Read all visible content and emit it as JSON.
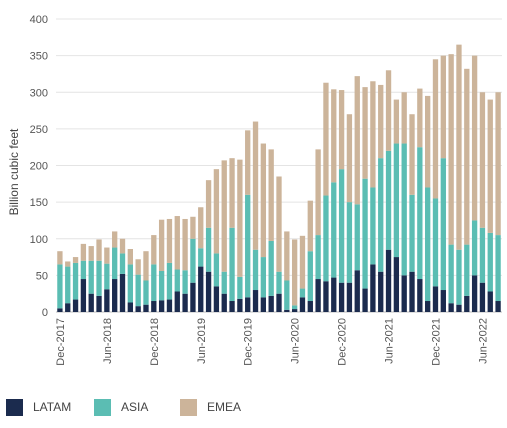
{
  "chart_data": {
    "type": "bar",
    "stacked": true,
    "ylabel": "Billion cubic feet",
    "ylim": [
      0,
      400
    ],
    "yticks": [
      0,
      50,
      100,
      150,
      200,
      250,
      300,
      350,
      400
    ],
    "grid": "horizontal",
    "legend_position": "bottom",
    "x_tick_labels": [
      {
        "index": 0,
        "label": "Dec-2017"
      },
      {
        "index": 6,
        "label": "Jun-2018"
      },
      {
        "index": 12,
        "label": "Dec-2018"
      },
      {
        "index": 18,
        "label": "Jun-2019"
      },
      {
        "index": 24,
        "label": "Dec-2019"
      },
      {
        "index": 30,
        "label": "Jun-2020"
      },
      {
        "index": 36,
        "label": "Dec-2020"
      },
      {
        "index": 42,
        "label": "Jun-2021"
      },
      {
        "index": 48,
        "label": "Dec-2021"
      },
      {
        "index": 54,
        "label": "Jun-2022"
      }
    ],
    "categories": [
      "Dec-2017",
      "Jan-2018",
      "Feb-2018",
      "Mar-2018",
      "Apr-2018",
      "May-2018",
      "Jun-2018",
      "Jul-2018",
      "Aug-2018",
      "Sep-2018",
      "Oct-2018",
      "Nov-2018",
      "Dec-2018",
      "Jan-2019",
      "Feb-2019",
      "Mar-2019",
      "Apr-2019",
      "May-2019",
      "Jun-2019",
      "Jul-2019",
      "Aug-2019",
      "Sep-2019",
      "Oct-2019",
      "Nov-2019",
      "Dec-2019",
      "Jan-2020",
      "Feb-2020",
      "Mar-2020",
      "Apr-2020",
      "May-2020",
      "Jun-2020",
      "Jul-2020",
      "Aug-2020",
      "Sep-2020",
      "Oct-2020",
      "Nov-2020",
      "Dec-2020",
      "Jan-2021",
      "Feb-2021",
      "Mar-2021",
      "Apr-2021",
      "May-2021",
      "Jun-2021",
      "Jul-2021",
      "Aug-2021",
      "Sep-2021",
      "Oct-2021",
      "Nov-2021",
      "Dec-2021",
      "Jan-2022",
      "Feb-2022",
      "Mar-2022",
      "Apr-2022",
      "May-2022",
      "Jun-2022",
      "Jul-2022",
      "Aug-2022"
    ],
    "series": [
      {
        "name": "LATAM",
        "color": "#1b2b4e",
        "values": [
          5,
          12,
          17,
          45,
          25,
          22,
          31,
          45,
          52,
          13,
          8,
          10,
          15,
          16,
          17,
          28,
          25,
          40,
          62,
          55,
          35,
          25,
          15,
          18,
          20,
          30,
          20,
          22,
          25,
          3,
          4,
          20,
          15,
          45,
          42,
          47,
          40,
          40,
          57,
          32,
          65,
          55,
          85,
          75,
          50,
          55,
          45,
          15,
          35,
          30,
          12,
          10,
          22,
          50,
          40,
          28,
          15
        ]
      },
      {
        "name": "ASIA",
        "color": "#5bbdb3",
        "values": [
          60,
          50,
          50,
          25,
          45,
          48,
          35,
          43,
          28,
          52,
          43,
          33,
          50,
          40,
          50,
          30,
          32,
          60,
          25,
          60,
          45,
          30,
          100,
          30,
          140,
          55,
          55,
          75,
          30,
          40,
          5,
          12,
          68,
          60,
          117,
          130,
          155,
          110,
          90,
          150,
          105,
          155,
          135,
          155,
          180,
          105,
          180,
          155,
          120,
          180,
          80,
          75,
          70,
          75,
          75,
          80,
          90
        ]
      },
      {
        "name": "EMEA",
        "color": "#ccb49a",
        "values": [
          18,
          7,
          8,
          23,
          20,
          29,
          22,
          22,
          20,
          21,
          21,
          40,
          40,
          70,
          60,
          73,
          70,
          30,
          56,
          65,
          115,
          152,
          95,
          160,
          88,
          175,
          155,
          125,
          130,
          67,
          90,
          72,
          69,
          117,
          154,
          127,
          108,
          120,
          175,
          125,
          145,
          100,
          110,
          60,
          70,
          110,
          80,
          125,
          190,
          140,
          260,
          280,
          240,
          225,
          185,
          182,
          195
        ]
      }
    ]
  },
  "legend": {
    "items": [
      {
        "label": "LATAM",
        "color": "#1b2b4e"
      },
      {
        "label": "ASIA",
        "color": "#5bbdb3"
      },
      {
        "label": "EMEA",
        "color": "#ccb49a"
      }
    ]
  }
}
